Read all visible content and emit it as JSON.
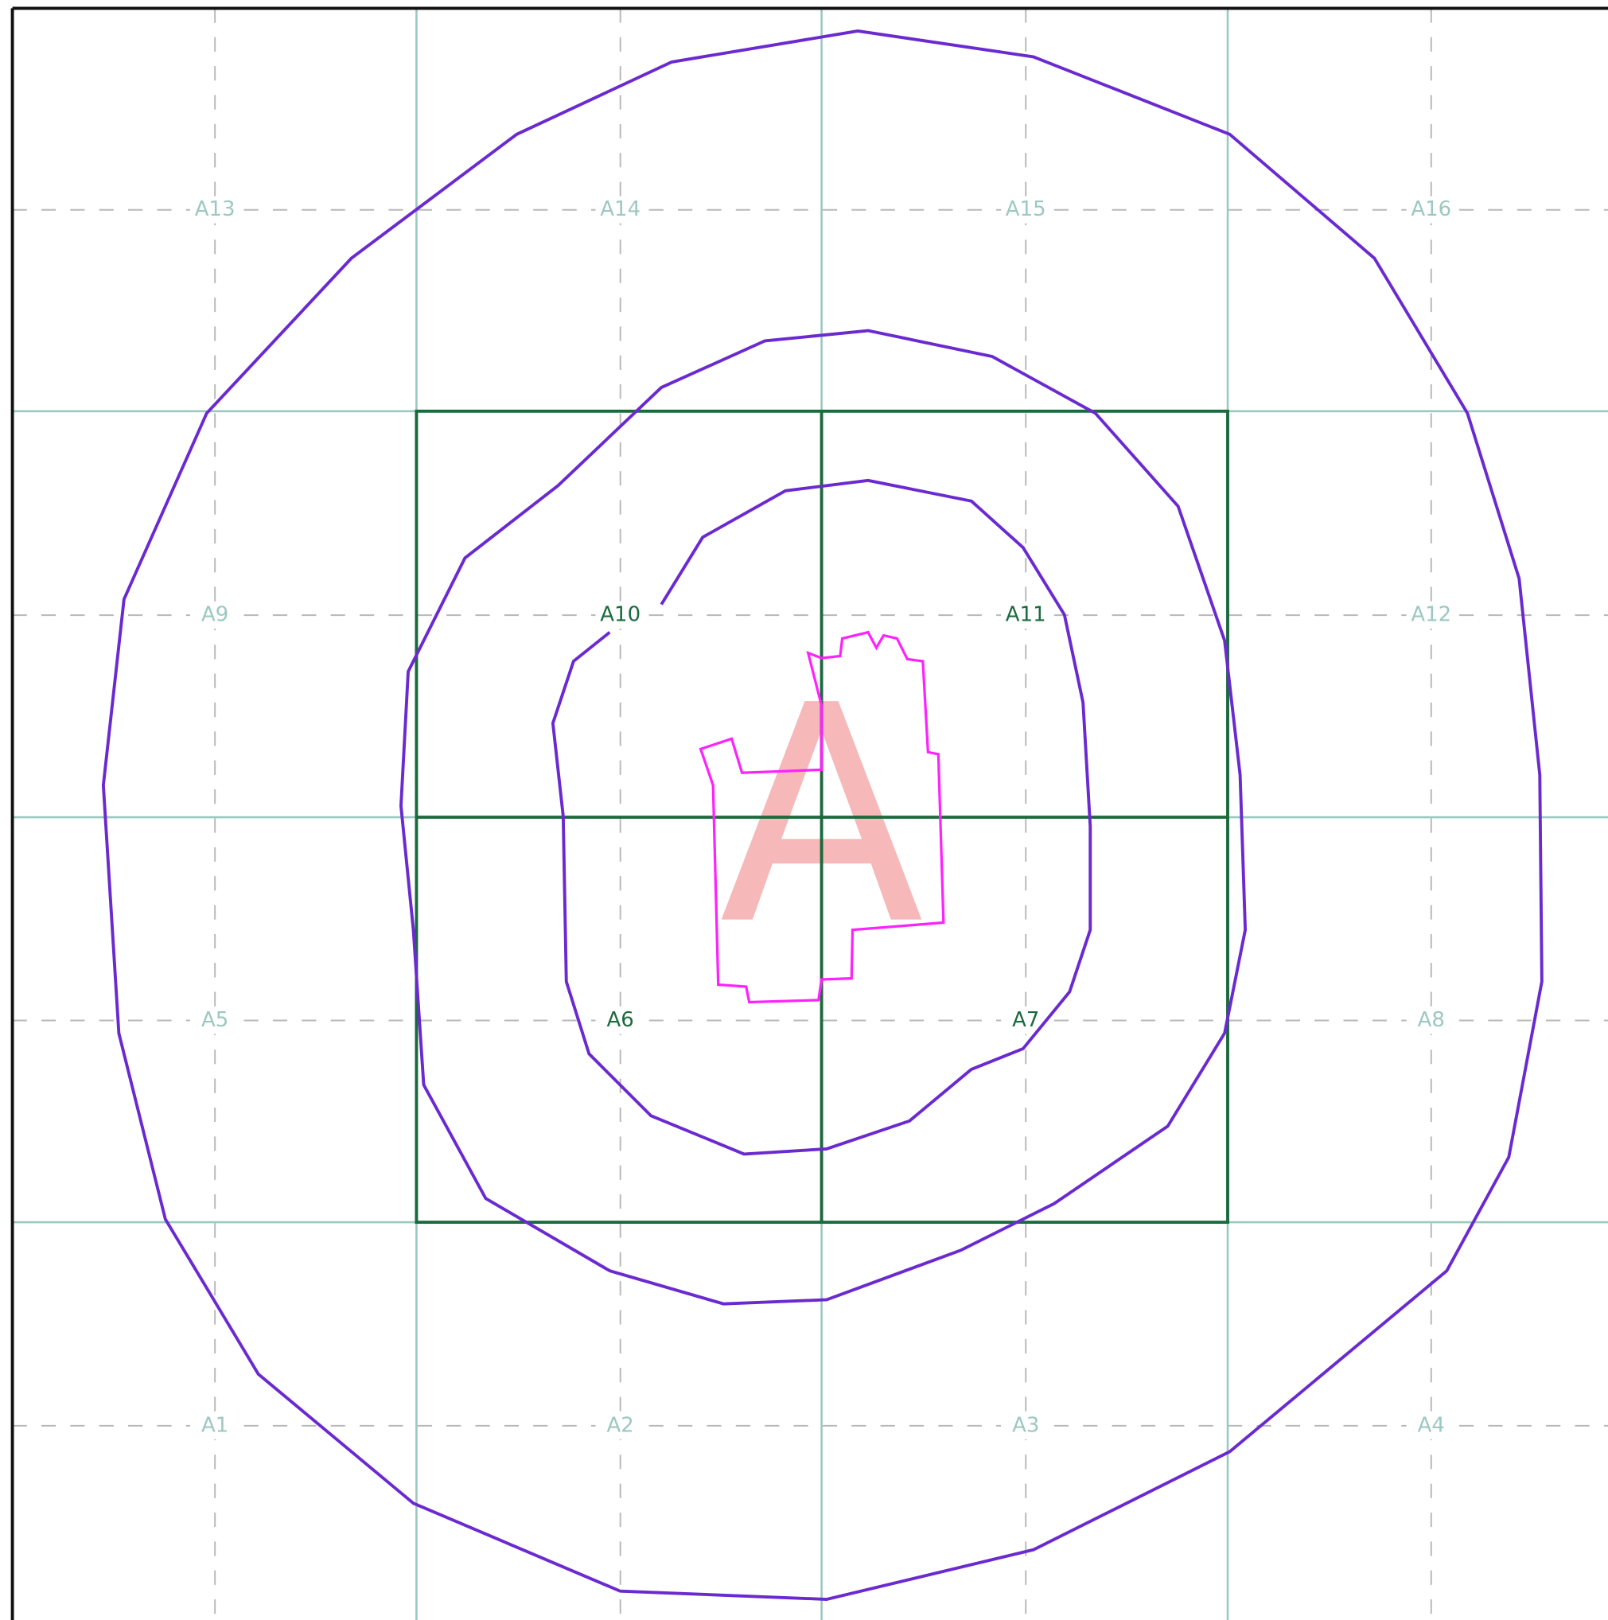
{
  "map": {
    "cells": [
      {
        "label": "A1"
      },
      {
        "label": "A2"
      },
      {
        "label": "A3"
      },
      {
        "label": "A4"
      },
      {
        "label": "A5"
      },
      {
        "label": "A6"
      },
      {
        "label": "A7"
      },
      {
        "label": "A8"
      },
      {
        "label": "A9"
      },
      {
        "label": "A10"
      },
      {
        "label": "A11"
      },
      {
        "label": "A12"
      },
      {
        "label": "A13"
      },
      {
        "label": "A14"
      },
      {
        "label": "A15"
      },
      {
        "label": "A16"
      }
    ],
    "letter": "A"
  }
}
